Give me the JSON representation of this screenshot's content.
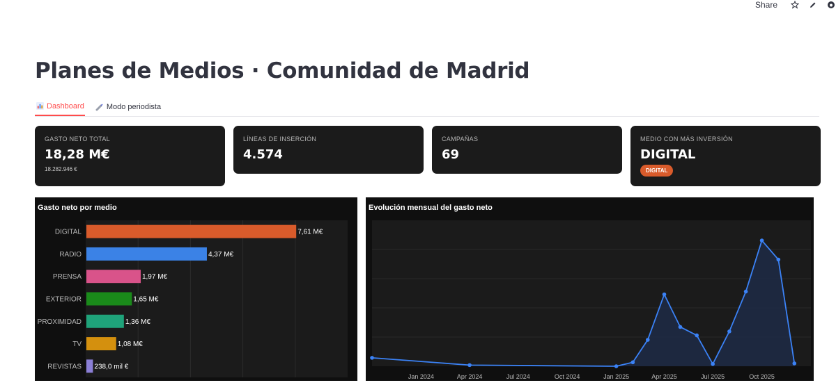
{
  "toolbar": {
    "share_label": "Share",
    "icons": [
      "star-icon",
      "edit-pencil-icon",
      "github-icon"
    ]
  },
  "page": {
    "title": "Planes de Medios · Comunidad de Madrid"
  },
  "tabs": [
    {
      "label": "Dashboard",
      "icon": "bar-chart-icon",
      "active": true
    },
    {
      "label": "Modo periodista",
      "icon": "syringe-icon",
      "active": false
    }
  ],
  "kpis": [
    {
      "label": "GASTO NETO TOTAL",
      "value": "18,28 M€",
      "sub": "18.282.946 €"
    },
    {
      "label": "LÍNEAS DE INSERCIÓN",
      "value": "4.574"
    },
    {
      "label": "CAMPAÑAS",
      "value": "69"
    },
    {
      "label": "MEDIO CON MÁS INVERSIÓN",
      "value": "DIGITAL",
      "badge": "DIGITAL"
    }
  ],
  "colors": {
    "accent": "#ff4b4b",
    "card_bg": "#1b1b1b",
    "badge": "#d95b2b",
    "line": "#3b82f6"
  },
  "chart_data": [
    {
      "type": "bar",
      "orientation": "horizontal",
      "title": "Gasto neto por medio",
      "categories": [
        "DIGITAL",
        "RADIO",
        "PRENSA",
        "EXTERIOR",
        "PROXIMIDAD",
        "TV",
        "REVISTAS"
      ],
      "values": [
        7.61,
        4.37,
        1.97,
        1.65,
        1.36,
        1.08,
        0.238
      ],
      "labels": [
        "7,61 M€",
        "4,37 M€",
        "1,97 M€",
        "1,65 M€",
        "1,36 M€",
        "1,08 M€",
        "238,0 mil €"
      ],
      "colors": [
        "#d95b2b",
        "#3b82e6",
        "#d9538a",
        "#1a8a1a",
        "#1fa37a",
        "#d4900e",
        "#8b7fd6"
      ],
      "xlim": [
        0,
        9.5
      ],
      "grid": true
    },
    {
      "type": "area",
      "title": "Evolución mensual del gasto neto",
      "x_ticks": [
        "Jan 2024",
        "Apr 2024",
        "Jul 2024",
        "Oct 2024",
        "Jan 2025",
        "Apr 2025",
        "Jul 2025",
        "Oct 2025"
      ],
      "x": [
        "2023-10",
        "2024-04",
        "2025-01",
        "2025-02",
        "2025-03",
        "2025-04",
        "2025-05",
        "2025-06",
        "2025-07",
        "2025-08",
        "2025-09",
        "2025-10",
        "2025-11",
        "2025-12"
      ],
      "y": [
        0.15,
        0.02,
        0.0,
        0.07,
        0.47,
        1.28,
        0.7,
        0.55,
        0.04,
        0.62,
        1.33,
        2.24,
        1.9,
        0.05
      ],
      "ylim": [
        0,
        2.6
      ],
      "color": "#3b82f6",
      "grid": true
    }
  ]
}
